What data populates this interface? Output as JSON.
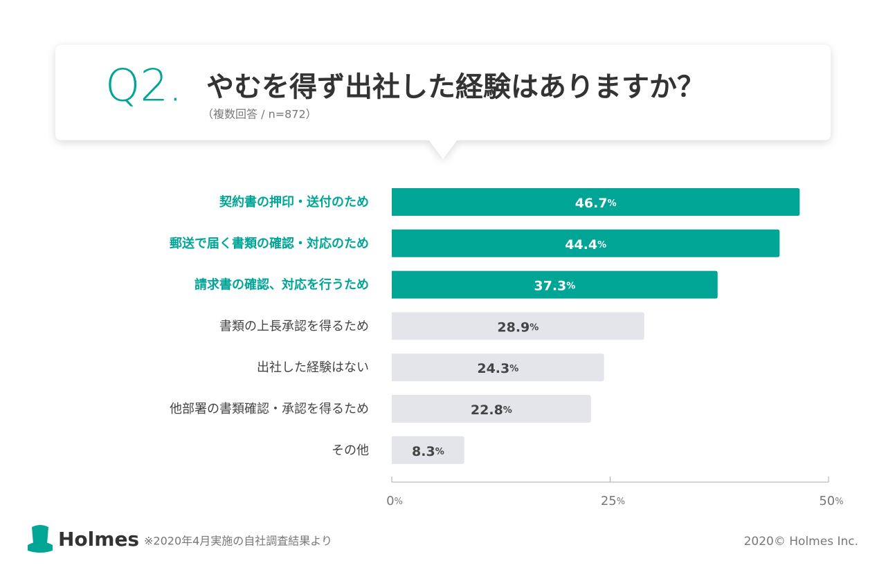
{
  "chart_data": {
    "type": "bar",
    "orientation": "horizontal",
    "question_number": "Q2.",
    "title": "やむを得ず出社した経験はありますか？",
    "subtitle": "（複数回答 / n=872）",
    "categories": [
      "契約書の押印・送付のため",
      "郵送で届く書類の確認・対応のため",
      "請求書の確認、対応を行うため",
      "書類の上長承認を得るため",
      "出社した経験はない",
      "他部署の書類確認・承認を得るため",
      "その他"
    ],
    "values": [
      46.7,
      44.4,
      37.3,
      28.9,
      24.3,
      22.8,
      8.3
    ],
    "value_labels": [
      "46.7%",
      "44.4%",
      "37.3%",
      "28.9%",
      "24.3%",
      "22.8%",
      "8.3%"
    ],
    "colors": [
      "#00a596",
      "#00a596",
      "#00a596",
      "#e4e5ea",
      "#e4e5ea",
      "#e4e5ea",
      "#e4e5ea"
    ],
    "label_colors": [
      "#00a596",
      "#00a596",
      "#00a596",
      "#444444",
      "#444444",
      "#444444",
      "#444444"
    ],
    "value_label_colors": [
      "#ffffff",
      "#ffffff",
      "#ffffff",
      "#444444",
      "#444444",
      "#444444",
      "#444444"
    ],
    "xlim": [
      0,
      50
    ],
    "xticks": [
      {
        "value": 0,
        "label": "0%"
      },
      {
        "value": 25,
        "label": "25%"
      },
      {
        "value": 50,
        "label": "50%"
      }
    ],
    "brand": "Holmes",
    "footnote": "※2020年4月実施の自社調査結果より",
    "copyright": "2020© Holmes Inc."
  }
}
